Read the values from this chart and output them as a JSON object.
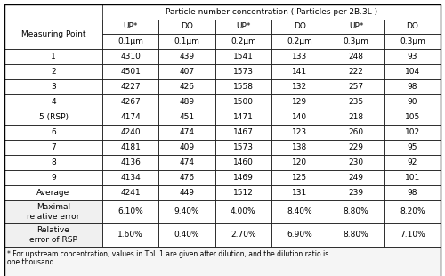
{
  "title": "Particle number concentration ( Particles per 2B.3L )",
  "col_headers_row1": [
    "UP*",
    "DO",
    "UP*",
    "DO",
    "UP*",
    "DO"
  ],
  "col_headers_row2": [
    "0.1μm",
    "0.1μm",
    "0.2μm",
    "0.2μm",
    "0.3μm",
    "0.3μm"
  ],
  "row_labels": [
    "1",
    "2",
    "3",
    "4",
    "5 (RSP)",
    "6",
    "7",
    "8",
    "9",
    "Average",
    "Maximal\nrelative error",
    "Relative\nerror of RSP"
  ],
  "data": [
    [
      "4310",
      "439",
      "1541",
      "133",
      "248",
      "93"
    ],
    [
      "4501",
      "407",
      "1573",
      "141",
      "222",
      "104"
    ],
    [
      "4227",
      "426",
      "1558",
      "132",
      "257",
      "98"
    ],
    [
      "4267",
      "489",
      "1500",
      "129",
      "235",
      "90"
    ],
    [
      "4174",
      "451",
      "1471",
      "140",
      "218",
      "105"
    ],
    [
      "4240",
      "474",
      "1467",
      "123",
      "260",
      "102"
    ],
    [
      "4181",
      "409",
      "1573",
      "138",
      "229",
      "95"
    ],
    [
      "4136",
      "474",
      "1460",
      "120",
      "230",
      "92"
    ],
    [
      "4134",
      "476",
      "1469",
      "125",
      "249",
      "101"
    ],
    [
      "4241",
      "449",
      "1512",
      "131",
      "239",
      "98"
    ],
    [
      "6.10%",
      "9.40%",
      "4.00%",
      "8.40%",
      "8.80%",
      "8.20%"
    ],
    [
      "1.60%",
      "0.40%",
      "2.70%",
      "6.90%",
      "8.80%",
      "7.10%"
    ]
  ],
  "footnote1": "* For upstream concentration, values in Tbl. 1 are given after dilution, and the dilution ratio is",
  "footnote2": "one thousand.",
  "measuring_point_label": "Measuring Point",
  "bg_color": "#ffffff"
}
